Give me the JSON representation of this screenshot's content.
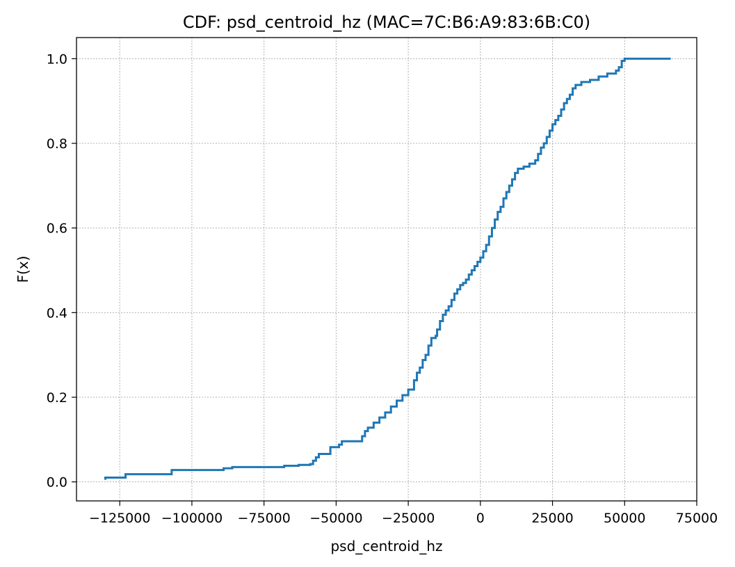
{
  "chart_data": {
    "type": "line",
    "title": "CDF: psd_centroid_hz (MAC=7C:B6:A9:83:6B:C0)",
    "xlabel": "psd_centroid_hz",
    "ylabel": "F(x)",
    "xlim": [
      -140000,
      75000
    ],
    "ylim": [
      -0.045,
      1.05
    ],
    "x_ticks": [
      {
        "value": -125000,
        "label": "−125000"
      },
      {
        "value": -100000,
        "label": "−100000"
      },
      {
        "value": -75000,
        "label": "−75000"
      },
      {
        "value": -50000,
        "label": "−50000"
      },
      {
        "value": -25000,
        "label": "−25000"
      },
      {
        "value": 0,
        "label": "0"
      },
      {
        "value": 25000,
        "label": "25000"
      },
      {
        "value": 50000,
        "label": "50000"
      },
      {
        "value": 75000,
        "label": "75000"
      }
    ],
    "y_ticks": [
      {
        "value": 0.0,
        "label": "0.0"
      },
      {
        "value": 0.2,
        "label": "0.2"
      },
      {
        "value": 0.4,
        "label": "0.4"
      },
      {
        "value": 0.6,
        "label": "0.6"
      },
      {
        "value": 0.8,
        "label": "0.8"
      },
      {
        "value": 1.0,
        "label": "1.0"
      }
    ],
    "grid": true,
    "series": [
      {
        "color": "#1f77b4",
        "step": "post",
        "points": [
          [
            -130000,
            0.005
          ],
          [
            -130000,
            0.01
          ],
          [
            -123000,
            0.01
          ],
          [
            -123000,
            0.018
          ],
          [
            -107000,
            0.018
          ],
          [
            -107000,
            0.028
          ],
          [
            -90000,
            0.028
          ],
          [
            -89000,
            0.032
          ],
          [
            -86000,
            0.035
          ],
          [
            -69000,
            0.035
          ],
          [
            -68000,
            0.038
          ],
          [
            -63000,
            0.04
          ],
          [
            -59000,
            0.042
          ],
          [
            -58000,
            0.05
          ],
          [
            -57000,
            0.058
          ],
          [
            -56000,
            0.066
          ],
          [
            -53000,
            0.066
          ],
          [
            -52000,
            0.082
          ],
          [
            -49000,
            0.088
          ],
          [
            -48000,
            0.096
          ],
          [
            -42000,
            0.096
          ],
          [
            -41000,
            0.108
          ],
          [
            -40000,
            0.12
          ],
          [
            -39000,
            0.128
          ],
          [
            -37000,
            0.14
          ],
          [
            -35000,
            0.152
          ],
          [
            -33000,
            0.164
          ],
          [
            -31000,
            0.178
          ],
          [
            -29000,
            0.192
          ],
          [
            -27000,
            0.205
          ],
          [
            -25000,
            0.218
          ],
          [
            -23000,
            0.24
          ],
          [
            -22000,
            0.258
          ],
          [
            -21000,
            0.27
          ],
          [
            -20000,
            0.288
          ],
          [
            -19000,
            0.3
          ],
          [
            -18000,
            0.322
          ],
          [
            -17000,
            0.34
          ],
          [
            -15500,
            0.345
          ],
          [
            -15000,
            0.36
          ],
          [
            -14000,
            0.38
          ],
          [
            -13000,
            0.395
          ],
          [
            -12000,
            0.405
          ],
          [
            -11000,
            0.415
          ],
          [
            -10000,
            0.43
          ],
          [
            -9000,
            0.445
          ],
          [
            -8000,
            0.455
          ],
          [
            -7000,
            0.465
          ],
          [
            -6000,
            0.47
          ],
          [
            -5000,
            0.478
          ],
          [
            -4000,
            0.49
          ],
          [
            -3000,
            0.5
          ],
          [
            -2000,
            0.51
          ],
          [
            -1000,
            0.52
          ],
          [
            0,
            0.53
          ],
          [
            1000,
            0.545
          ],
          [
            2000,
            0.56
          ],
          [
            3000,
            0.58
          ],
          [
            4000,
            0.6
          ],
          [
            5000,
            0.62
          ],
          [
            6000,
            0.638
          ],
          [
            7000,
            0.65
          ],
          [
            8000,
            0.67
          ],
          [
            9000,
            0.685
          ],
          [
            10000,
            0.7
          ],
          [
            11000,
            0.715
          ],
          [
            12000,
            0.73
          ],
          [
            13000,
            0.74
          ],
          [
            15000,
            0.745
          ],
          [
            17000,
            0.752
          ],
          [
            19000,
            0.76
          ],
          [
            20000,
            0.775
          ],
          [
            21000,
            0.79
          ],
          [
            22000,
            0.8
          ],
          [
            23000,
            0.815
          ],
          [
            24000,
            0.83
          ],
          [
            25000,
            0.845
          ],
          [
            26000,
            0.855
          ],
          [
            27000,
            0.865
          ],
          [
            28000,
            0.88
          ],
          [
            29000,
            0.895
          ],
          [
            30000,
            0.905
          ],
          [
            31000,
            0.915
          ],
          [
            32000,
            0.93
          ],
          [
            33000,
            0.938
          ],
          [
            35000,
            0.945
          ],
          [
            38000,
            0.95
          ],
          [
            41000,
            0.958
          ],
          [
            44000,
            0.965
          ],
          [
            47000,
            0.972
          ],
          [
            48000,
            0.98
          ],
          [
            49000,
            0.995
          ],
          [
            50000,
            1.0
          ],
          [
            66000,
            1.0
          ]
        ]
      }
    ]
  }
}
